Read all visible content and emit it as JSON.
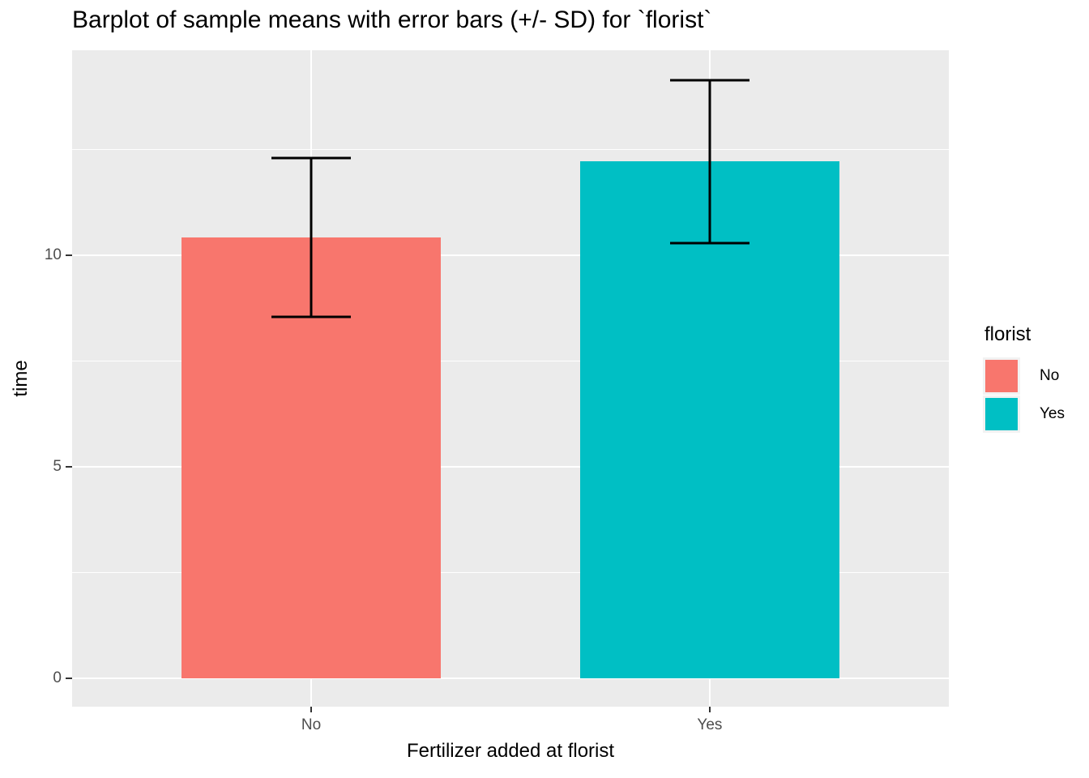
{
  "chart_data": {
    "type": "bar",
    "title": "Barplot of sample means with error bars (+/- SD) for `florist`",
    "xlabel": "Fertilizer added at florist",
    "ylabel": "time",
    "categories": [
      "No",
      "Yes"
    ],
    "values": [
      10.43,
      12.22
    ],
    "error_upper": [
      12.31,
      14.14
    ],
    "error_lower": [
      8.55,
      10.29
    ],
    "colors": [
      "#F8766D",
      "#00BFC4"
    ],
    "ylim": [
      -0.675,
      14.85
    ],
    "y_major_ticks": [
      0,
      5,
      10
    ],
    "y_tick_labels": [
      "0",
      "5",
      "10"
    ],
    "y_minor_gridlines": [
      2.5,
      7.5,
      12.5
    ],
    "grid": "on",
    "legend_position": "right",
    "panel_background": "#EBEBEB",
    "gridline_color": "#FFFFFF",
    "axis_text_color": "#4D4D4D",
    "tick_mark_color": "#333333",
    "error_bar_color": "#000000"
  },
  "legend": {
    "title": "florist",
    "items": [
      {
        "label": "No",
        "color": "#F8766D"
      },
      {
        "label": "Yes",
        "color": "#00BFC4"
      }
    ]
  }
}
